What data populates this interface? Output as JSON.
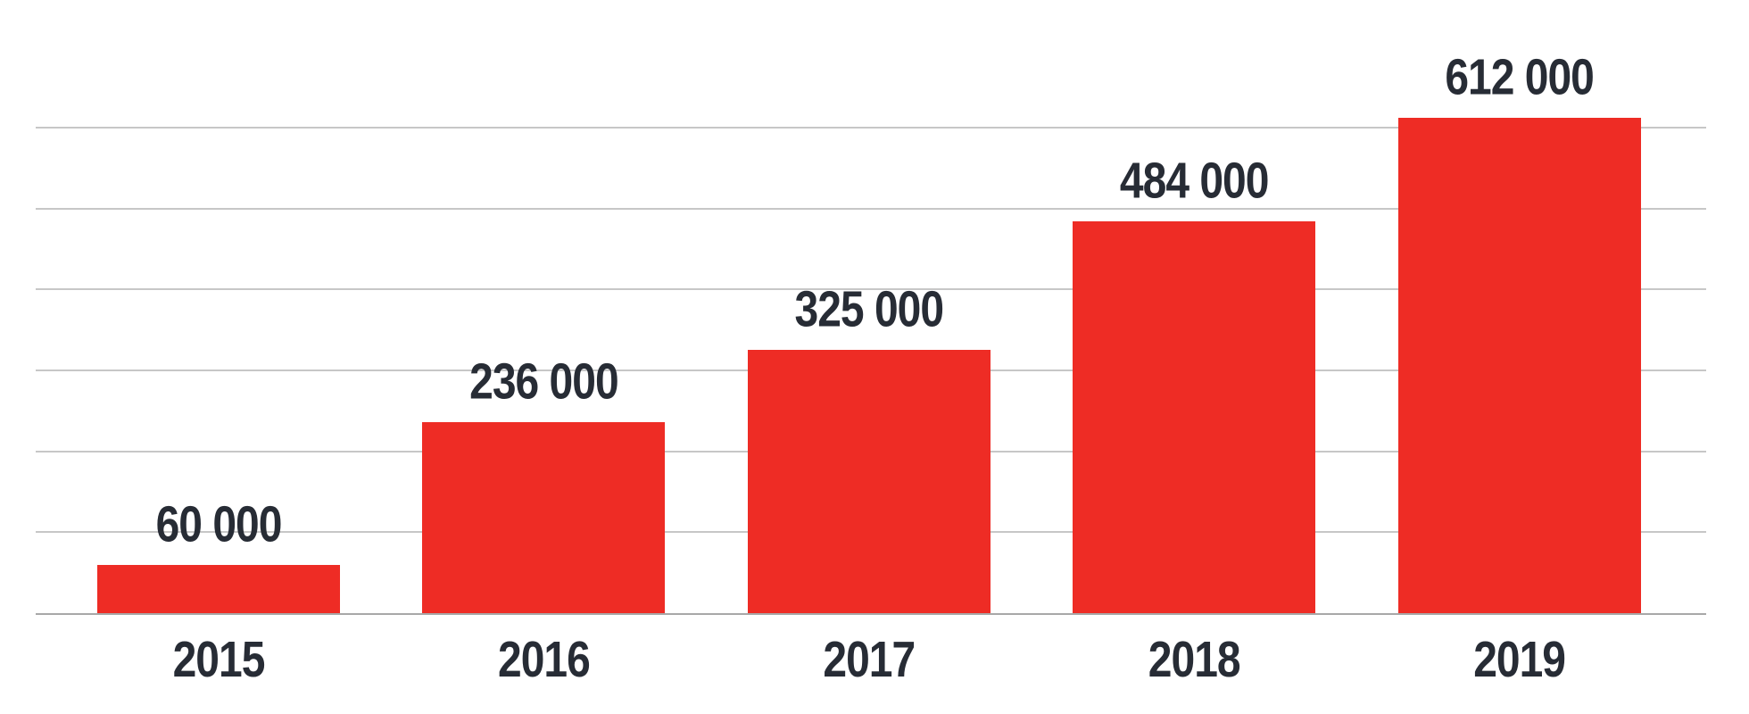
{
  "chart_data": {
    "type": "bar",
    "categories": [
      "2015",
      "2016",
      "2017",
      "2018",
      "2019"
    ],
    "values": [
      60000,
      236000,
      325000,
      484000,
      612000
    ],
    "value_labels": [
      "60 000",
      "236 000",
      "325 000",
      "484 000",
      "612 000"
    ],
    "title": "",
    "xlabel": "",
    "ylabel": "",
    "ylim": [
      0,
      650000
    ],
    "gridline_step": 100000,
    "grid": "horizontal-only, no y-axis tick labels",
    "legend_position": "none",
    "colors": {
      "bar": "#ee2c25",
      "label_text": "#272c35",
      "gridline": "#c7c7c7",
      "axis_line": "#a8a8a8",
      "background": "#ffffff"
    }
  }
}
